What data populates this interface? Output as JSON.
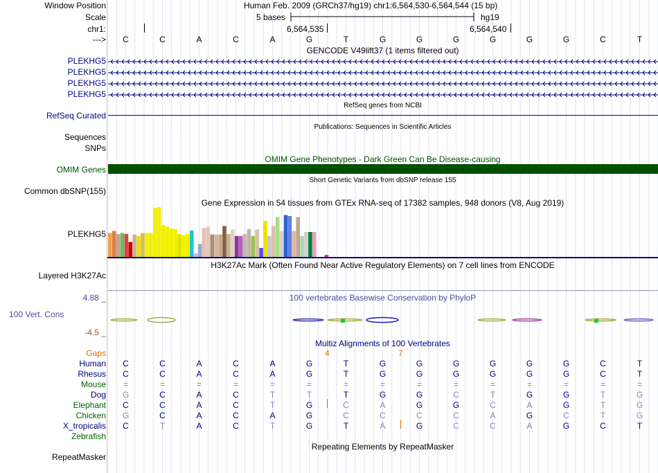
{
  "colors": {
    "navy": "#000080",
    "omim": "#005000",
    "orange": "#d87000",
    "brown": "#a0522d",
    "consTitle": "#4a4aa0",
    "pale": "#7e8ab6",
    "greenlab": "#006000",
    "grid": "#d0d0ff"
  },
  "header": {
    "window_position_label": "Window Position",
    "assembly_info": "Human Feb. 2009 (GRCh37/hg19)   chr1:6,564,530-6,564,544 (15 bp)",
    "scale_label": "Scale",
    "scale_text": "5 bases",
    "scale_db": "hg19",
    "chr_label": "chr1:",
    "pos1": "6,564,535",
    "pos2": "6,564,540",
    "seq_label": "--->",
    "bases": [
      "C",
      "C",
      "A",
      "C",
      "A",
      "G",
      "T",
      "G",
      "G",
      "G",
      "G",
      "G",
      "G",
      "C",
      "T"
    ]
  },
  "tracks": {
    "gencode_title": "GENCODE V49lift37 (1 items filtered out)",
    "gencode_items": [
      "PLEKHG5",
      "PLEKHG5",
      "PLEKHG5",
      "PLEKHG5"
    ],
    "refseq_title": "RefSeq genes from NCBI",
    "refseq_label": "RefSeq Curated",
    "pubs_title": "Publications: Sequences in Scientific Articles",
    "sequences_label": "Sequences",
    "snps_label": "SNPs",
    "omim_title": "OMIM Gene Phenotypes - Dark Green Can Be Disease-causing",
    "omim_label": "OMIM Genes",
    "dbsnp_title": "Short Genetic Variants from dbSNP release 155",
    "dbsnp_label": "Common dbSNP(155)",
    "gtex_title": "Gene Expression in 54 tissues from GTEx RNA-seq of 17382 samples, 948 donors (V8, Aug 2019)",
    "gtex_label": "PLEKHG5",
    "h3k27_title": "H3K27Ac Mark (Often Found Near Active Regulatory Elements) on 7 cell lines from ENCODE",
    "h3k27_label": "Layered H3K27Ac",
    "cons_max": "4.88 _",
    "cons_title": "100 vertebrates Basewise Conservation by PhyloP",
    "cons_label": "100 Vert. Cons",
    "cons_min": "-4.5 _",
    "gaps_label": "Gaps",
    "multiz_title": "Multiz Alignments of 100 Vertebrates",
    "gap_counts": [
      "4",
      "7"
    ],
    "repeat_title": "Repeating Elements by RepeatMasker",
    "repeat_label": "RepeatMasker"
  },
  "gtex_bars": [
    {
      "v": 0.48,
      "c": "#f0a050"
    },
    {
      "v": 0.52,
      "c": "#e0803a"
    },
    {
      "v": 0.46,
      "c": "#c8a090"
    },
    {
      "v": 0.48,
      "c": "#60c060"
    },
    {
      "v": 0.46,
      "c": "#e04040"
    },
    {
      "v": 0.3,
      "c": "#d00000"
    },
    {
      "v": 0.45,
      "c": "#c8b4a0"
    },
    {
      "v": 0.42,
      "c": "#f0e000"
    },
    {
      "v": 0.48,
      "c": "#d0c060"
    },
    {
      "v": 0.48,
      "c": "#f0f000"
    },
    {
      "v": 0.48,
      "c": "#f0f000"
    },
    {
      "v": 0.98,
      "c": "#f0f000"
    },
    {
      "v": 1.0,
      "c": "#f0f000"
    },
    {
      "v": 0.64,
      "c": "#f0f000"
    },
    {
      "v": 0.61,
      "c": "#f0f000"
    },
    {
      "v": 0.57,
      "c": "#f0f000"
    },
    {
      "v": 0.56,
      "c": "#f0f000"
    },
    {
      "v": 0.46,
      "c": "#e0e000"
    },
    {
      "v": 0.44,
      "c": "#f0f000"
    },
    {
      "v": 0.46,
      "c": "#f0f000"
    },
    {
      "v": 0.53,
      "c": "#20c8d0"
    },
    {
      "v": 0.07,
      "c": "#e0a0ff"
    },
    {
      "v": 0.26,
      "c": "#90b0c0"
    },
    {
      "v": 0.58,
      "c": "#e8c0b8"
    },
    {
      "v": 0.61,
      "c": "#e0c8c0"
    },
    {
      "v": 0.45,
      "c": "#a89070"
    },
    {
      "v": 0.45,
      "c": "#d0b8a0"
    },
    {
      "v": 0.45,
      "c": "#c8a888"
    },
    {
      "v": 0.62,
      "c": "#806040"
    },
    {
      "v": 0.46,
      "c": "#c8b090"
    },
    {
      "v": 0.55,
      "c": "#e0d0c0"
    },
    {
      "v": 0.42,
      "c": "#9030a0"
    },
    {
      "v": 0.42,
      "c": "#b060c0"
    },
    {
      "v": 0.46,
      "c": "#c8b8a8"
    },
    {
      "v": 0.56,
      "c": "#c0b8b0"
    },
    {
      "v": 0.42,
      "c": "#a0c050"
    },
    {
      "v": 0.55,
      "c": "#d8c0a8"
    },
    {
      "v": 0.18,
      "c": "#5050f0"
    },
    {
      "v": 0.72,
      "c": "#f0e000"
    },
    {
      "v": 0.42,
      "c": "#c8c8c8"
    },
    {
      "v": 0.62,
      "c": "#d8c0b0"
    },
    {
      "v": 0.8,
      "c": "#a8e080"
    },
    {
      "v": 0.52,
      "c": "#d8d0c8"
    },
    {
      "v": 0.84,
      "c": "#3060d0"
    },
    {
      "v": 0.82,
      "c": "#6080e0"
    },
    {
      "v": 0.52,
      "c": "#e0b8a0"
    },
    {
      "v": 0.8,
      "c": "#c0a890"
    },
    {
      "v": 0.42,
      "c": "#b0d8b0"
    },
    {
      "v": 0.5,
      "c": "#d0d0d0"
    },
    {
      "v": 0.5,
      "c": "#008040"
    },
    {
      "v": 0.5,
      "c": "#f0a0b0"
    },
    {
      "v": 0.0,
      "c": "#ffffff"
    },
    {
      "v": 0.0,
      "c": "#ffffff"
    },
    {
      "v": 0.04,
      "c": "#d020d0"
    }
  ],
  "multiz": {
    "species": [
      {
        "name": "Human",
        "color": "#000080",
        "bases": [
          "C",
          "C",
          "A",
          "C",
          "A",
          "G",
          "T",
          "G",
          "G",
          "G",
          "G",
          "G",
          "G",
          "C",
          "T"
        ],
        "match": [
          1,
          1,
          1,
          1,
          1,
          1,
          1,
          1,
          1,
          1,
          1,
          1,
          1,
          1,
          1
        ]
      },
      {
        "name": "Rhesus",
        "color": "#000080",
        "bases": [
          "C",
          "C",
          "A",
          "C",
          "A",
          "G",
          "T",
          "G",
          "G",
          "G",
          "G",
          "G",
          "G",
          "C",
          "T"
        ],
        "match": [
          1,
          1,
          1,
          1,
          1,
          1,
          1,
          1,
          1,
          1,
          1,
          1,
          1,
          1,
          1
        ]
      },
      {
        "name": "Mouse",
        "color": "#006000",
        "bases": [
          "=",
          "=",
          "=",
          "=",
          "=",
          "=",
          "=",
          "=",
          "=",
          "=",
          "=",
          "=",
          "=",
          "=",
          "="
        ],
        "match": [
          0,
          0,
          0,
          0,
          0,
          0,
          0,
          0,
          0,
          0,
          0,
          0,
          0,
          0,
          0
        ]
      },
      {
        "name": "Dog",
        "color": "#000080",
        "bases": [
          "G",
          "C",
          "A",
          "C",
          "T",
          "T",
          "T",
          "G",
          "G",
          "C",
          "T",
          "G",
          "G",
          "T",
          "G"
        ],
        "match": [
          0,
          1,
          1,
          1,
          0,
          0,
          1,
          1,
          1,
          0,
          0,
          1,
          1,
          0,
          0
        ]
      },
      {
        "name": "Elephant",
        "color": "#006000",
        "bases": [
          "C",
          "C",
          "A",
          "C",
          "T",
          "G",
          "C",
          "A",
          "G",
          "G",
          "C",
          "A",
          "G",
          "T",
          "G"
        ],
        "match": [
          1,
          1,
          1,
          1,
          0,
          1,
          0,
          0,
          1,
          1,
          0,
          0,
          1,
          0,
          0
        ]
      },
      {
        "name": "Chicken",
        "color": "#006000",
        "bases": [
          "G",
          "C",
          "A",
          "C",
          "A",
          "G",
          "C",
          "C",
          "C",
          "C",
          "A",
          "G",
          "C",
          "T",
          "G"
        ],
        "match": [
          0,
          1,
          1,
          1,
          1,
          1,
          0,
          0,
          0,
          0,
          0,
          1,
          0,
          0,
          0
        ]
      },
      {
        "name": "X_tropicalis",
        "color": "#000080",
        "bases": [
          "C",
          "T",
          "A",
          "C",
          "T",
          "G",
          "T",
          "A",
          "G",
          "C",
          "C",
          "A",
          "G",
          "C",
          "T"
        ],
        "match": [
          1,
          0,
          1,
          1,
          0,
          1,
          1,
          0,
          1,
          0,
          0,
          0,
          1,
          1,
          1
        ]
      },
      {
        "name": "Zebrafish",
        "color": "#006000",
        "bases": [
          "",
          "",
          "",
          "",
          "",
          "",
          "",
          "",
          "",
          "",
          "",
          "",
          "",
          "",
          ""
        ],
        "match": [
          0,
          0,
          0,
          0,
          0,
          0,
          0,
          0,
          0,
          0,
          0,
          0,
          0,
          0,
          0
        ]
      }
    ]
  }
}
